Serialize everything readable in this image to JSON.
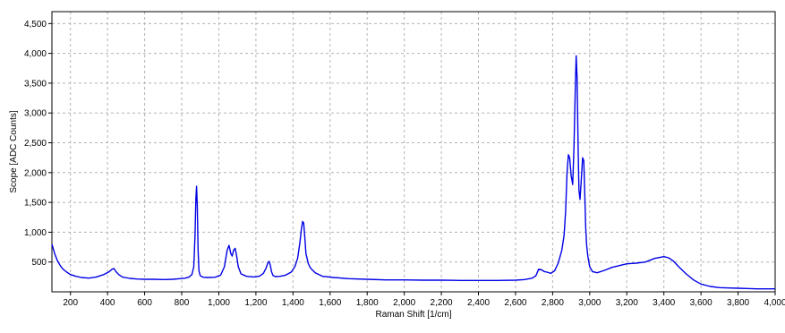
{
  "chart_data": {
    "type": "line",
    "title": "",
    "xlabel": "Raman Shift [1/cm]",
    "ylabel": "Scope [ADC Counts]",
    "xlim": [
      100,
      4000
    ],
    "ylim": [
      0,
      4700
    ],
    "xticks": [
      200,
      400,
      600,
      800,
      1000,
      1200,
      1400,
      1600,
      1800,
      2000,
      2200,
      2400,
      2600,
      2800,
      3000,
      3200,
      3400,
      3600,
      3800,
      4000
    ],
    "xtick_labels": [
      "200",
      "400",
      "600",
      "800",
      "1,000",
      "1,200",
      "1,400",
      "1,600",
      "1,800",
      "2,000",
      "2,200",
      "2,400",
      "2,600",
      "2,800",
      "3,000",
      "3,200",
      "3,400",
      "3,600",
      "3,800",
      "4,000"
    ],
    "yticks": [
      500,
      1000,
      1500,
      2000,
      2500,
      3000,
      3500,
      4000,
      4500
    ],
    "ytick_labels": [
      "500",
      "1,000",
      "1,500",
      "2,000",
      "2,500",
      "3,000",
      "3,500",
      "4,000",
      "4,500"
    ],
    "grid": true,
    "line_color": "#0000e6",
    "series": [
      {
        "x": [
          100,
          115,
          130,
          145,
          160,
          180,
          200,
          230,
          260,
          300,
          340,
          380,
          410,
          425,
          435,
          445,
          460,
          480,
          520,
          560,
          600,
          650,
          700,
          750,
          790,
          820,
          840,
          855,
          865,
          872,
          876,
          880,
          884,
          888,
          893,
          900,
          915,
          940,
          980,
          1010,
          1030,
          1045,
          1055,
          1065,
          1072,
          1080,
          1088,
          1096,
          1105,
          1120,
          1150,
          1190,
          1220,
          1240,
          1255,
          1265,
          1272,
          1278,
          1284,
          1292,
          1305,
          1330,
          1360,
          1390,
          1410,
          1425,
          1437,
          1445,
          1452,
          1458,
          1464,
          1470,
          1476,
          1482,
          1490,
          1500,
          1520,
          1560,
          1620,
          1700,
          1800,
          1900,
          2000,
          2100,
          2200,
          2300,
          2400,
          2500,
          2600,
          2650,
          2690,
          2710,
          2725,
          2740,
          2755,
          2770,
          2790,
          2810,
          2830,
          2850,
          2862,
          2870,
          2878,
          2885,
          2892,
          2900,
          2908,
          2915,
          2922,
          2927,
          2932,
          2937,
          2942,
          2948,
          2955,
          2962,
          2968,
          2973,
          2978,
          2983,
          2990,
          3000,
          3015,
          3040,
          3080,
          3120,
          3160,
          3200,
          3250,
          3300,
          3350,
          3400,
          3425,
          3450,
          3480,
          3520,
          3560,
          3600,
          3650,
          3700,
          3750,
          3800,
          3850,
          3900,
          3950,
          4000
        ],
        "y": [
          800,
          640,
          520,
          440,
          380,
          330,
          290,
          260,
          240,
          230,
          250,
          290,
          340,
          380,
          390,
          340,
          290,
          250,
          225,
          215,
          210,
          210,
          205,
          210,
          220,
          230,
          250,
          290,
          420,
          950,
          1550,
          1770,
          1450,
          700,
          350,
          270,
          245,
          240,
          245,
          280,
          420,
          700,
          780,
          640,
          600,
          700,
          730,
          600,
          420,
          300,
          260,
          250,
          265,
          310,
          400,
          490,
          510,
          440,
          340,
          275,
          255,
          260,
          280,
          330,
          420,
          560,
          820,
          1050,
          1180,
          1150,
          900,
          640,
          560,
          480,
          420,
          380,
          320,
          260,
          240,
          220,
          210,
          200,
          200,
          195,
          195,
          190,
          190,
          190,
          195,
          205,
          230,
          270,
          380,
          370,
          340,
          330,
          310,
          350,
          480,
          700,
          950,
          1350,
          2000,
          2300,
          2250,
          1950,
          1800,
          2400,
          3400,
          3960,
          3600,
          2500,
          1700,
          1550,
          1900,
          2250,
          2200,
          1700,
          1100,
          800,
          600,
          420,
          340,
          320,
          360,
          410,
          440,
          470,
          480,
          500,
          560,
          590,
          570,
          520,
          420,
          300,
          200,
          130,
          90,
          70,
          65,
          60,
          55,
          50,
          50,
          50
        ]
      }
    ]
  }
}
